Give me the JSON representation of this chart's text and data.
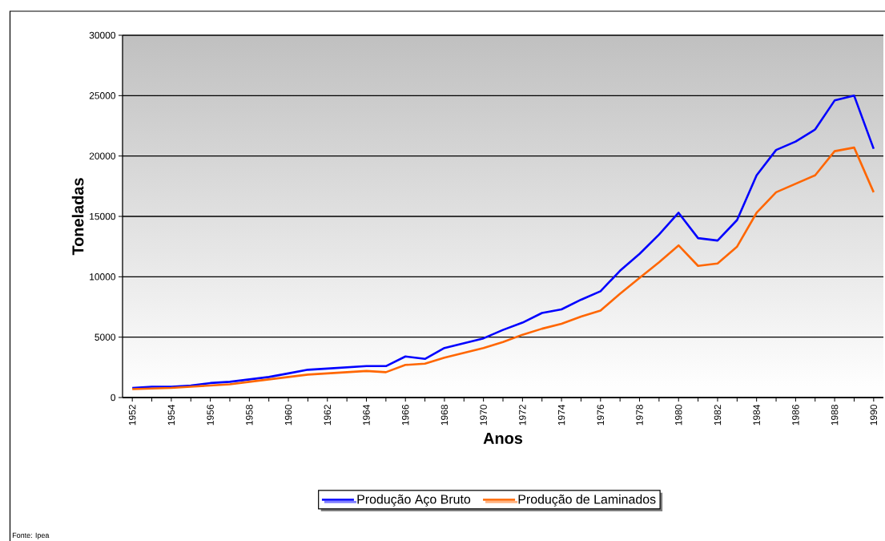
{
  "chart_data": {
    "type": "line",
    "xlabel": "Anos",
    "ylabel": "Toneladas",
    "categories": [
      "1952",
      null,
      "1954",
      null,
      "1956",
      null,
      "1958",
      null,
      "1960",
      null,
      "1962",
      null,
      "1964",
      null,
      "1966",
      null,
      "1968",
      null,
      "1970",
      null,
      "1972",
      null,
      "1974",
      null,
      "1976",
      null,
      "1978",
      null,
      "1980",
      null,
      "1982",
      null,
      "1984",
      null,
      "1986",
      null,
      "1988",
      null,
      "1990"
    ],
    "series": [
      {
        "name": "Produção Aço Bruto",
        "color": "#0000ff",
        "values": [
          800,
          900,
          900,
          1000,
          1200,
          1300,
          1500,
          1700,
          2000,
          2300,
          2400,
          2500,
          2600,
          2600,
          3400,
          3200,
          4100,
          4500,
          4900,
          5600,
          6200,
          7000,
          7300,
          8100,
          8800,
          10500,
          11900,
          13500,
          15300,
          13200,
          13000,
          14700,
          18400,
          20500,
          21200,
          22200,
          24600,
          25000,
          20600
        ]
      },
      {
        "name": "Produção de Laminados",
        "color": "#ff6600",
        "values": [
          700,
          750,
          800,
          900,
          1000,
          1100,
          1300,
          1500,
          1700,
          1900,
          2000,
          2100,
          2200,
          2100,
          2700,
          2800,
          3300,
          3700,
          4100,
          4600,
          5200,
          5700,
          6100,
          6700,
          7200,
          8600,
          9900,
          11200,
          12600,
          10900,
          11100,
          12500,
          15300,
          17000,
          17700,
          18400,
          20400,
          20700,
          17000
        ]
      }
    ],
    "ylim": [
      0,
      30000
    ],
    "yticks": [
      0,
      5000,
      10000,
      15000,
      20000,
      25000,
      30000
    ],
    "grid": "y",
    "legend": "bottom",
    "annotations": [
      "Fonte: Ipea"
    ]
  }
}
